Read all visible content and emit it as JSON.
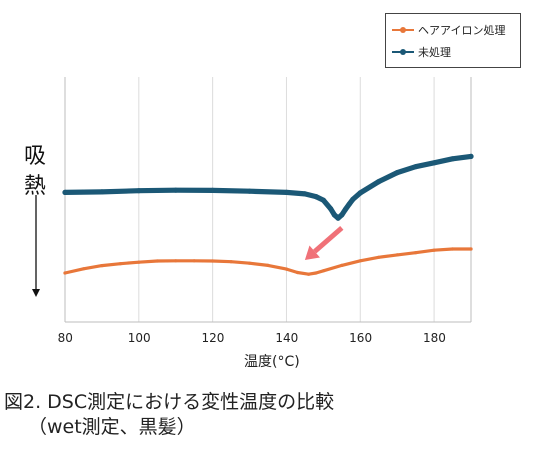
{
  "chart_data": {
    "type": "line",
    "xlabel": "温度(°C)",
    "ylabel": "吸熱",
    "xlim": [
      80,
      190
    ],
    "x_ticks": [
      80,
      100,
      120,
      140,
      160,
      180
    ],
    "grid": "vertical",
    "legend_position": "top-right",
    "series": [
      {
        "name": "ヘアアイロン処理",
        "color": "#e8773a",
        "x": [
          80,
          85,
          90,
          95,
          100,
          105,
          110,
          115,
          120,
          125,
          130,
          135,
          140,
          143,
          146,
          148,
          150,
          155,
          160,
          165,
          170,
          175,
          180,
          185,
          190
        ],
        "y": [
          20.0,
          21.7,
          23.0,
          23.8,
          24.4,
          24.9,
          25.0,
          25.0,
          24.9,
          24.6,
          24.0,
          23.1,
          21.6,
          20.2,
          19.5,
          20.0,
          20.9,
          23.1,
          25.0,
          26.4,
          27.4,
          28.3,
          29.3,
          29.8,
          29.8
        ]
      },
      {
        "name": "未処理",
        "color": "#1b5876",
        "x": [
          80,
          90,
          100,
          110,
          120,
          130,
          140,
          145,
          148,
          150,
          152,
          153,
          154,
          155,
          156,
          157,
          158,
          160,
          165,
          170,
          175,
          180,
          185,
          190
        ],
        "y": [
          52.9,
          53.1,
          53.6,
          53.8,
          53.7,
          53.4,
          52.9,
          52.3,
          51.2,
          49.7,
          46.2,
          43.7,
          42.4,
          43.7,
          46.0,
          48.1,
          50.1,
          52.7,
          57.3,
          61.0,
          63.4,
          65.0,
          66.6,
          67.6
        ]
      }
    ],
    "annotations": [
      {
        "type": "arrow",
        "color": "#f07178",
        "from": [
          155,
          38.4
        ],
        "to": [
          145,
          25.3
        ]
      }
    ]
  },
  "figure_caption": {
    "line1": "図2. DSC測定における変性温度の比較",
    "line2": "（wet測定、黒髪）"
  }
}
